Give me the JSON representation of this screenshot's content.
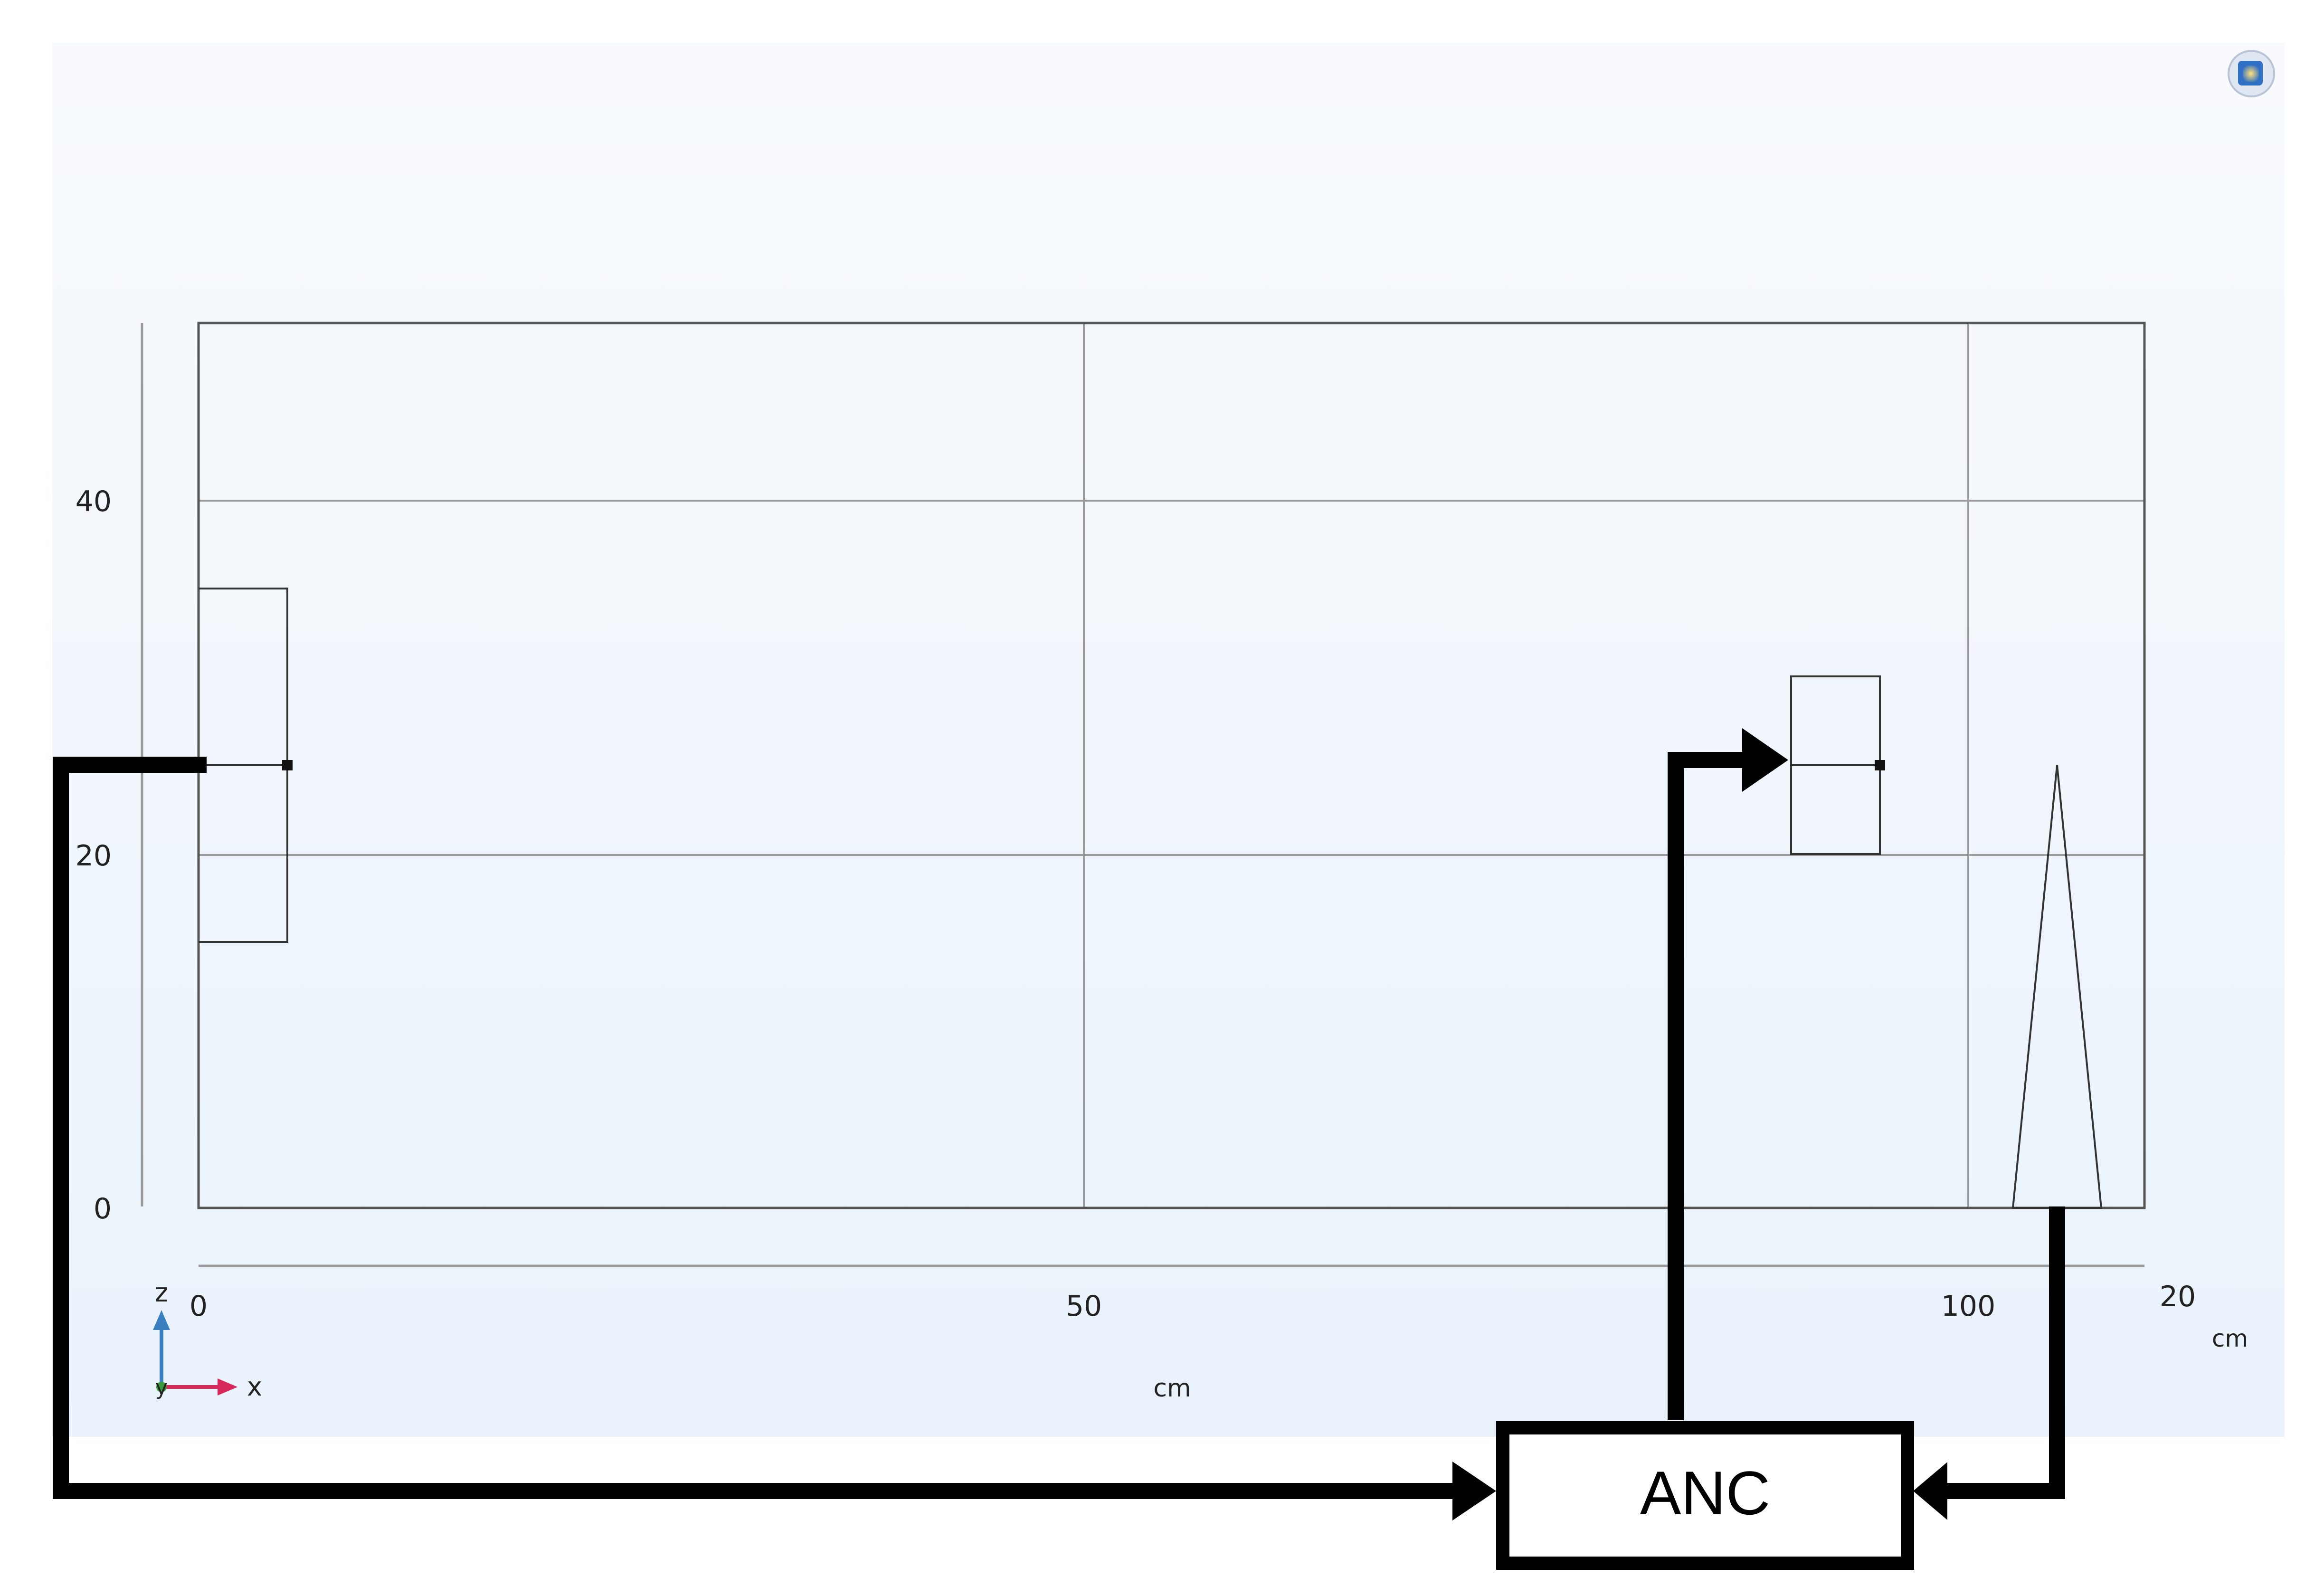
{
  "view": {
    "length_unit": "cm",
    "x_axis_label": "x",
    "z_axis_label": "z",
    "y_axis_label": "y"
  },
  "ticks": {
    "x": [
      "0",
      "50",
      "100"
    ],
    "z": [
      "0",
      "20",
      "40"
    ],
    "y": [
      "20"
    ]
  },
  "units": {
    "x": "cm",
    "y": "cm"
  },
  "controller": {
    "label": "ANC"
  },
  "colors": {
    "background_top": "#f8fafd",
    "background_bottom": "#e9f2fb",
    "geometry_line": "#555555",
    "grid_line": "#9a9a9a",
    "signal_line": "#000000",
    "x_axis_arrow": "#d8285a",
    "z_axis_arrow": "#3a7fc0",
    "y_axis_dot": "#3c9a3c"
  },
  "icons": [
    "view-cube-icon"
  ]
}
